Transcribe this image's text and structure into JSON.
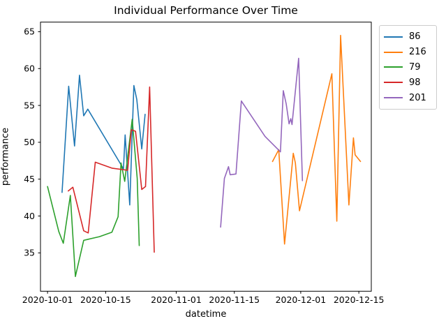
{
  "figure": {
    "title": "Individual Performance Over Time",
    "xlabel": "datetime",
    "ylabel": "performance"
  },
  "chart_data": {
    "type": "line",
    "title": "Individual Performance Over Time",
    "xlabel": "datetime",
    "ylabel": "performance",
    "grid": false,
    "x_axis": {
      "kind": "datetime",
      "unit": "days since 2020-10-01",
      "lim": [
        -1.7,
        78.0
      ],
      "ticks": [
        {
          "day": 0,
          "label": "2020-10-01"
        },
        {
          "day": 14,
          "label": "2020-10-15"
        },
        {
          "day": 31,
          "label": "2020-11-01"
        },
        {
          "day": 45,
          "label": "2020-11-15"
        },
        {
          "day": 61,
          "label": "2020-12-01"
        },
        {
          "day": 75,
          "label": "2020-12-15"
        }
      ]
    },
    "y_axis": {
      "lim": [
        29.8,
        66.3
      ],
      "ticks": [
        {
          "value": 35,
          "label": "35"
        },
        {
          "value": 40,
          "label": "40"
        },
        {
          "value": 45,
          "label": "45"
        },
        {
          "value": 50,
          "label": "50"
        },
        {
          "value": 55,
          "label": "55"
        },
        {
          "value": 60,
          "label": "60"
        },
        {
          "value": 65,
          "label": "65"
        }
      ]
    },
    "legend": {
      "position": "outside-upper-right",
      "entries": [
        "86",
        "216",
        "79",
        "98",
        "201"
      ]
    },
    "series": [
      {
        "name": "86",
        "color": "#1f77b4",
        "points": [
          [
            3.5,
            43.2
          ],
          [
            5.1,
            57.6
          ],
          [
            6.5,
            49.5
          ],
          [
            7.7,
            59.1
          ],
          [
            8.7,
            53.6
          ],
          [
            9.7,
            54.5
          ],
          [
            18.3,
            46.4
          ],
          [
            18.7,
            51.0
          ],
          [
            19.8,
            41.5
          ],
          [
            20.8,
            57.7
          ],
          [
            21.5,
            55.8
          ],
          [
            22.7,
            49.1
          ],
          [
            23.5,
            53.8
          ]
        ]
      },
      {
        "name": "216",
        "color": "#ff7f0e",
        "points": [
          [
            54.2,
            47.4
          ],
          [
            55.7,
            49.0
          ],
          [
            57.1,
            36.2
          ],
          [
            59.2,
            48.5
          ],
          [
            59.7,
            47.2
          ],
          [
            60.7,
            40.7
          ],
          [
            68.5,
            59.3
          ],
          [
            69.7,
            39.3
          ],
          [
            70.6,
            64.5
          ],
          [
            72.6,
            41.5
          ],
          [
            73.7,
            50.6
          ],
          [
            74.1,
            48.3
          ],
          [
            75.4,
            47.4
          ]
        ]
      },
      {
        "name": "79",
        "color": "#2ca02c",
        "points": [
          [
            0,
            44.0
          ],
          [
            2.7,
            37.9
          ],
          [
            3.8,
            36.3
          ],
          [
            5.5,
            42.8
          ],
          [
            6.7,
            31.8
          ],
          [
            8.7,
            36.7
          ],
          [
            12.5,
            37.2
          ],
          [
            15.5,
            37.8
          ],
          [
            17.0,
            39.9
          ],
          [
            17.7,
            47.2
          ],
          [
            18.6,
            44.7
          ],
          [
            20.4,
            53.1
          ],
          [
            21.6,
            45.1
          ],
          [
            22.1,
            36.0
          ]
        ]
      },
      {
        "name": "98",
        "color": "#d62728",
        "points": [
          [
            5.0,
            43.4
          ],
          [
            6.1,
            43.9
          ],
          [
            8.7,
            38.0
          ],
          [
            9.8,
            37.7
          ],
          [
            11.5,
            47.3
          ],
          [
            15.5,
            46.5
          ],
          [
            19.3,
            46.2
          ],
          [
            20.2,
            51.7
          ],
          [
            21.2,
            51.5
          ],
          [
            22.7,
            43.6
          ],
          [
            23.6,
            44.0
          ],
          [
            24.6,
            57.5
          ],
          [
            25.7,
            35.1
          ]
        ]
      },
      {
        "name": "201",
        "color": "#9467bd",
        "points": [
          [
            41.7,
            38.5
          ],
          [
            42.6,
            45.1
          ],
          [
            43.6,
            46.7
          ],
          [
            44.0,
            45.6
          ],
          [
            45.4,
            45.7
          ],
          [
            46.7,
            55.6
          ],
          [
            52.4,
            50.8
          ],
          [
            56.1,
            48.7
          ],
          [
            56.8,
            57.0
          ],
          [
            57.5,
            55.2
          ],
          [
            58.2,
            52.5
          ],
          [
            58.6,
            53.2
          ],
          [
            58.9,
            52.4
          ],
          [
            60.5,
            61.4
          ],
          [
            61.4,
            44.8
          ]
        ]
      }
    ]
  }
}
